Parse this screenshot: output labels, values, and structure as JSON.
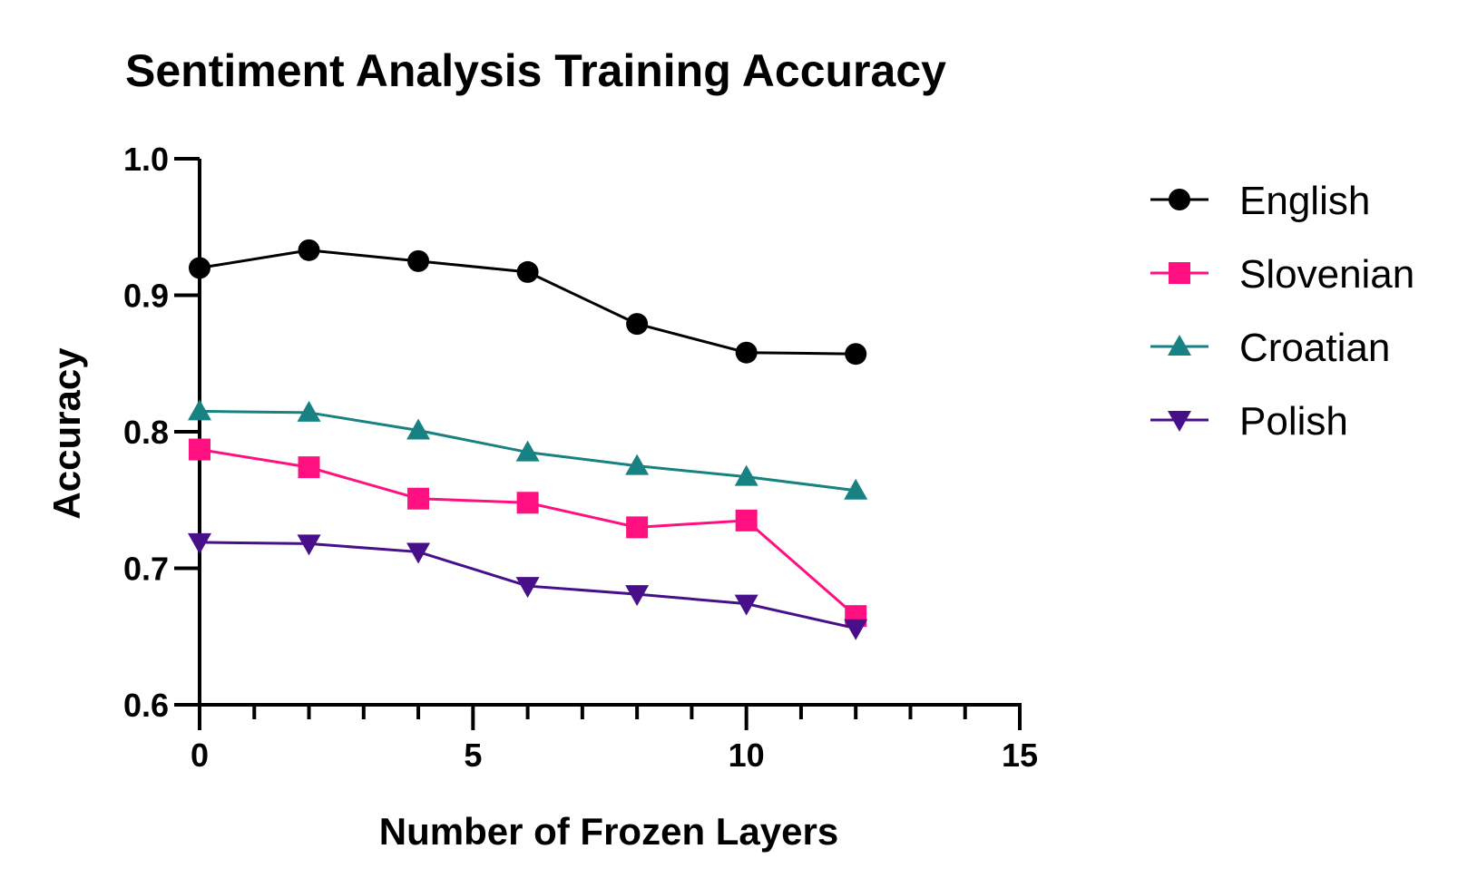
{
  "chart_data": {
    "type": "line",
    "title": "Sentiment Analysis Training  Accuracy",
    "xlabel": "Number of Frozen  Layers",
    "ylabel": "Accuracy",
    "xlim": [
      0,
      15
    ],
    "ylim": [
      0.6,
      1.0
    ],
    "x_ticks": [
      0,
      5,
      10,
      15
    ],
    "x_tick_labels": [
      "0",
      "5",
      "10",
      "15"
    ],
    "x_minor_step": 1,
    "y_ticks": [
      0.6,
      0.7,
      0.8,
      0.9,
      1.0
    ],
    "y_tick_labels": [
      "0.6",
      "0.7",
      "0.8",
      "0.9",
      "1.0"
    ],
    "grid": false,
    "legend_position": "right",
    "x": [
      0,
      2,
      4,
      6,
      8,
      10,
      12
    ],
    "series": [
      {
        "name": "English",
        "marker": "circle",
        "color": "#000000",
        "values": [
          0.92,
          0.933,
          0.925,
          0.917,
          0.879,
          0.858,
          0.857
        ]
      },
      {
        "name": "Slovenian",
        "marker": "square",
        "color": "#ff0f7f",
        "values": [
          0.787,
          0.774,
          0.751,
          0.748,
          0.73,
          0.735,
          0.665
        ]
      },
      {
        "name": "Croatian",
        "marker": "triangle-up",
        "color": "#178281",
        "values": [
          0.815,
          0.814,
          0.801,
          0.785,
          0.775,
          0.767,
          0.757
        ]
      },
      {
        "name": "Polish",
        "marker": "triangle-down",
        "color": "#470f8a",
        "values": [
          0.719,
          0.718,
          0.712,
          0.687,
          0.681,
          0.674,
          0.656
        ]
      }
    ]
  }
}
